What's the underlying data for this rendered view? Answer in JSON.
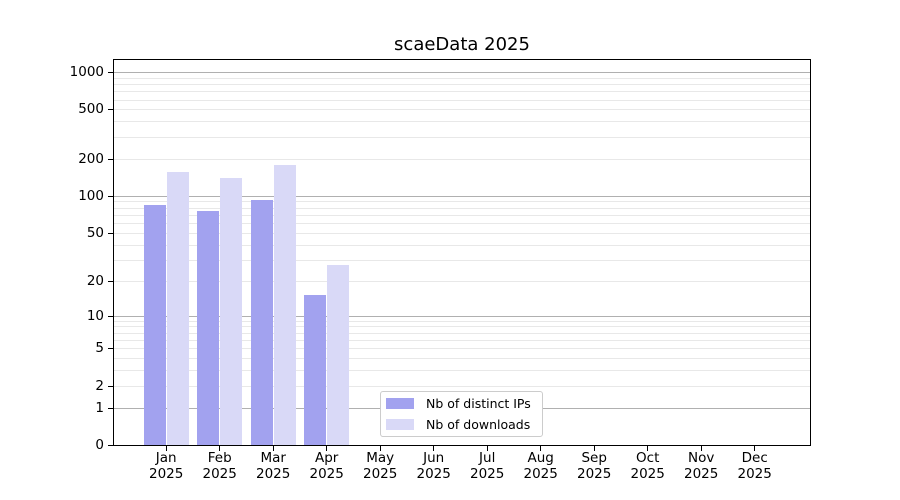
{
  "chart_data": {
    "type": "bar",
    "title": "scaeData 2025",
    "yscale": "log1p",
    "categories": [
      "Jan",
      "Feb",
      "Mar",
      "Apr",
      "May",
      "Jun",
      "Jul",
      "Aug",
      "Sep",
      "Oct",
      "Nov",
      "Dec"
    ],
    "category_year": "2025",
    "series": [
      {
        "name": "Nb of distinct IPs",
        "color": "#a2a2ef",
        "values": [
          85,
          76,
          92,
          15,
          null,
          null,
          null,
          null,
          null,
          null,
          null,
          null
        ]
      },
      {
        "name": "Nb of downloads",
        "color": "#d9d9f7",
        "values": [
          155,
          140,
          178,
          27,
          null,
          null,
          null,
          null,
          null,
          null,
          null,
          null
        ]
      }
    ],
    "y_ticks": [
      0,
      1,
      2,
      5,
      10,
      20,
      50,
      100,
      200,
      500,
      1000
    ],
    "y_major_gridlines": [
      1,
      10,
      100,
      1000
    ],
    "y_minor_gridlines": [
      2,
      3,
      4,
      5,
      6,
      7,
      8,
      9,
      20,
      30,
      40,
      50,
      60,
      70,
      80,
      90,
      200,
      300,
      400,
      500,
      600,
      700,
      800,
      900
    ],
    "ylim": [
      0,
      1250
    ],
    "legend_position": "inside-bottom-center",
    "grid": true,
    "colors": {
      "major_grid": "#b0b0b0",
      "minor_grid": "#e8e8e8",
      "axis": "#000000",
      "text": "#000000"
    }
  }
}
